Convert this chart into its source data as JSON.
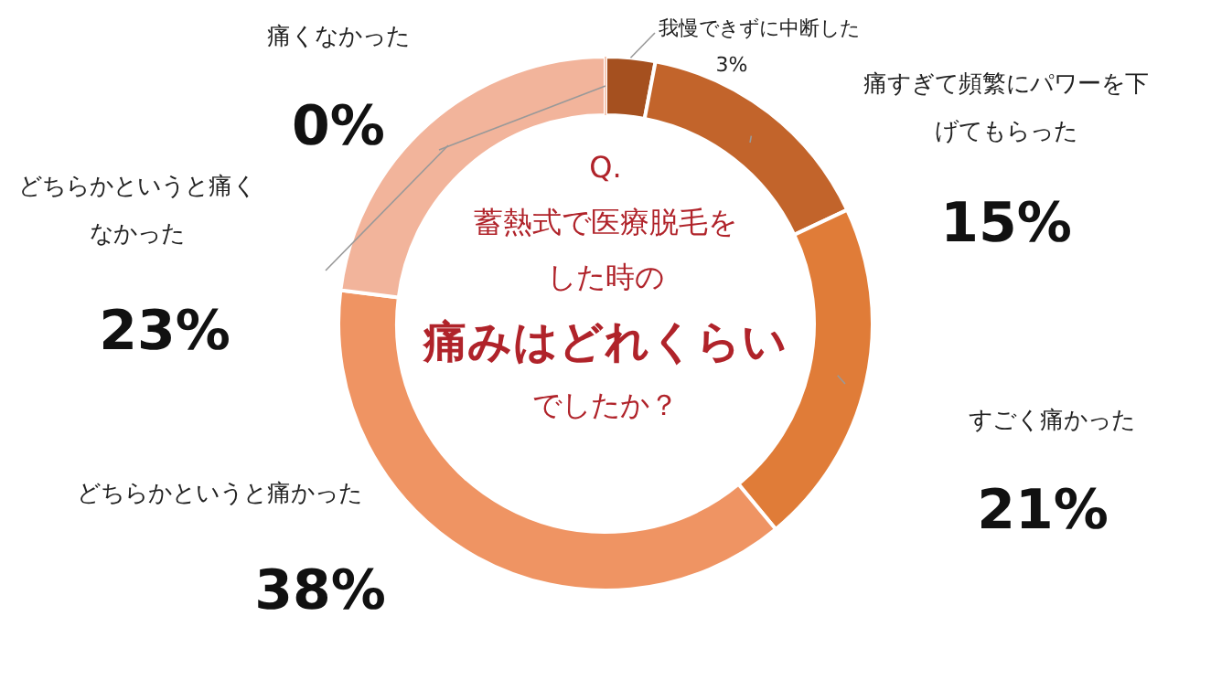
{
  "chart_data": {
    "type": "donut",
    "title": "Q.",
    "subtitle": "蓄熱式で医療脱毛をした時の**痛みはどれくらい**でしたか？",
    "categories": [
      "我慢できずに中断した",
      "痛すぎて頻繁にパワーを下げてもらった",
      "すごく痛かった",
      "どちらかというと痛かった",
      "どちらかというと痛くなかった",
      "痛くなかった"
    ],
    "values": [
      3,
      15,
      21,
      38,
      23,
      0
    ],
    "colors": [
      "#a5501f",
      "#c2642b",
      "#e07c38",
      "#ef9463",
      "#f2b49b",
      "#f5c9b5"
    ],
    "value_labels": [
      "3%",
      "15%",
      "21%",
      "38%",
      "23%",
      "0%"
    ],
    "legend": false
  }
}
